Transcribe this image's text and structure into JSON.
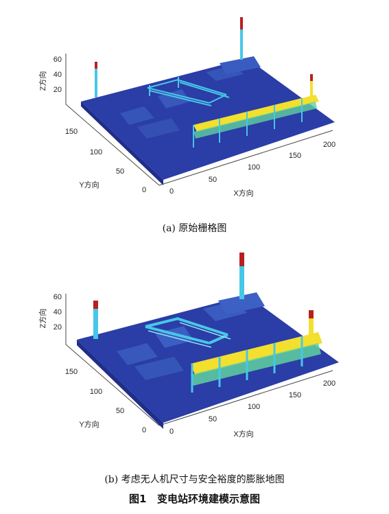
{
  "figure": {
    "number_label": "图1",
    "title": "变电站环境建模示意图"
  },
  "panels": [
    {
      "caption": "(a) 原始栅格图",
      "axes": {
        "x_label": "X方向",
        "y_label": "Y方向",
        "z_label": "Z方向",
        "x_ticks": [
          "0",
          "50",
          "100",
          "150",
          "200"
        ],
        "y_ticks": [
          "0",
          "50",
          "100",
          "150"
        ],
        "z_ticks": [
          "20",
          "40",
          "60"
        ]
      }
    },
    {
      "caption": "(b) 考虑无人机尺寸与安全裕度的膨胀地图",
      "axes": {
        "x_label": "X方向",
        "y_label": "Y方向",
        "z_label": "Z方向",
        "x_ticks": [
          "0",
          "50",
          "100",
          "150",
          "200"
        ],
        "y_ticks": [
          "0",
          "50",
          "100",
          "150"
        ],
        "z_ticks": [
          "20",
          "40",
          "60"
        ]
      }
    }
  ],
  "colors": {
    "ground": "#2b3da6",
    "ground_dark": "#1f2e8a",
    "building": "#3556b8",
    "lines_cyan": "#47c7e8",
    "lines_green": "#5fd1a0",
    "lines_yellow": "#f2df2e",
    "tower_red": "#b82020"
  }
}
